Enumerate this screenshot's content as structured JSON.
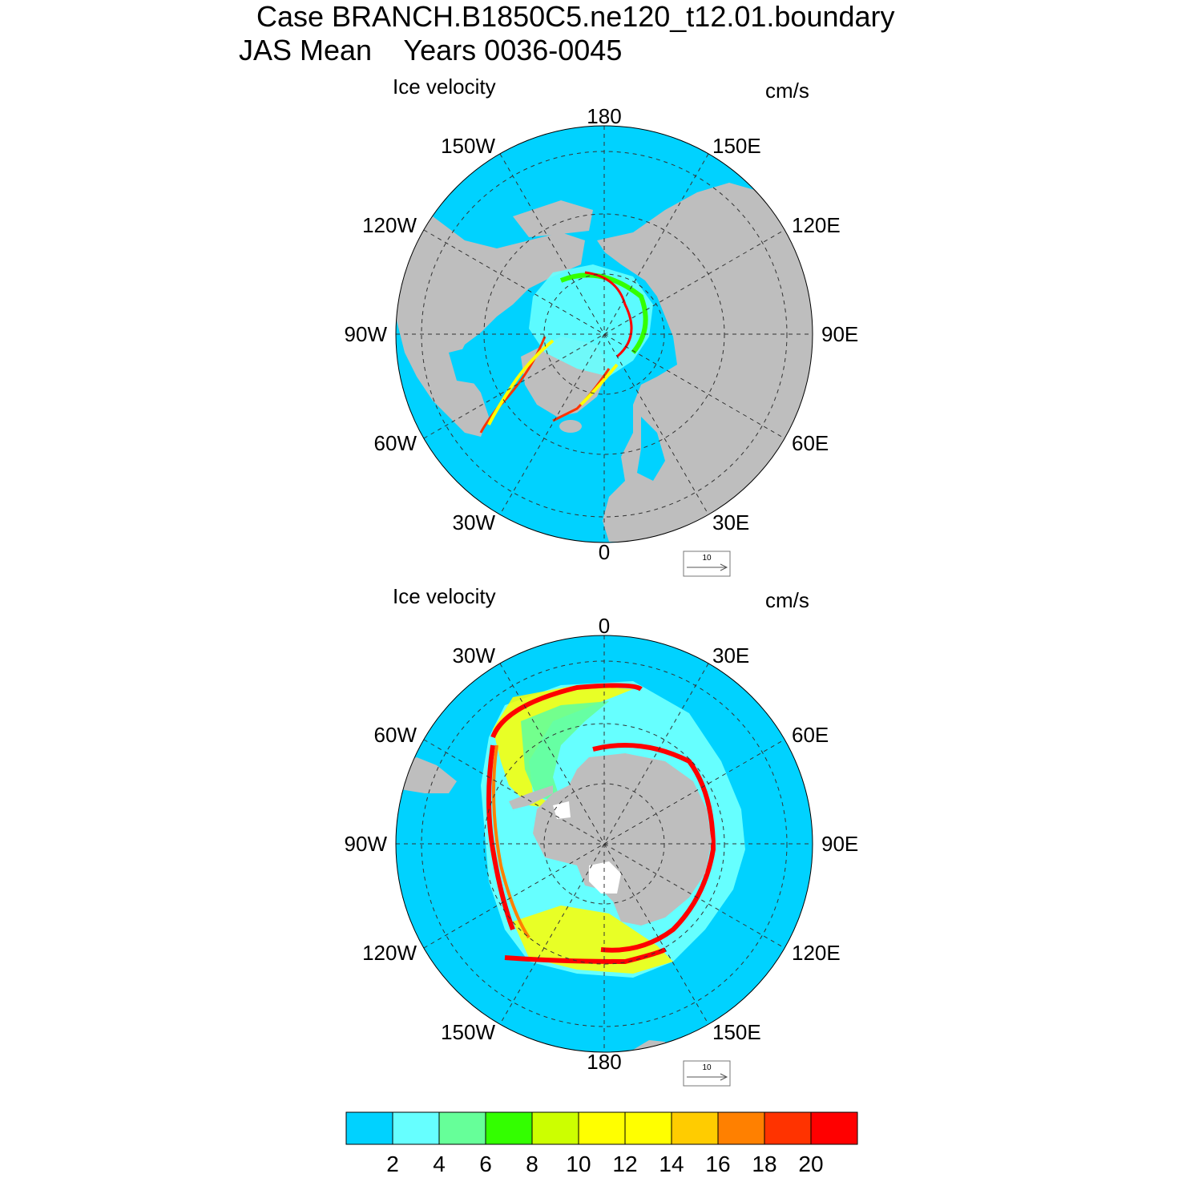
{
  "header": {
    "case_line": "Case BRANCH.B1850C5.ne120_t12.01.boundary",
    "season_line": "JAS Mean    Years 0036-0045"
  },
  "panels": [
    {
      "id": "north",
      "left_label": "Ice velocity",
      "right_label": "cm/s",
      "lon_labels": {
        "top": "180",
        "bottom": "0",
        "left": "90W",
        "right": "90E",
        "upper_left": "150W",
        "upper_right": "150E",
        "mid_upper_left": "120W",
        "mid_upper_right": "120E",
        "mid_lower_left": "60W",
        "mid_lower_right": "60E",
        "lower_left": "30W",
        "lower_right": "30E"
      },
      "ref_vector_label": "10"
    },
    {
      "id": "south",
      "left_label": "Ice velocity",
      "right_label": "cm/s",
      "lon_labels": {
        "top": "0",
        "bottom": "180",
        "left": "90W",
        "right": "90E",
        "upper_left": "30W",
        "upper_right": "30E",
        "mid_upper_left": "60W",
        "mid_upper_right": "60E",
        "mid_lower_left": "120W",
        "mid_lower_right": "120E",
        "lower_left": "150W",
        "lower_right": "150E"
      },
      "ref_vector_label": "10"
    }
  ],
  "colorbar": {
    "colors": [
      "#00d2ff",
      "#66ffff",
      "#66ff99",
      "#33ff00",
      "#ccff00",
      "#ffff00",
      "#ffff00",
      "#ffcc00",
      "#ff8000",
      "#ff3300",
      "#ff0000"
    ],
    "labels": [
      "2",
      "4",
      "6",
      "8",
      "10",
      "12",
      "14",
      "16",
      "18",
      "20"
    ]
  },
  "colors": {
    "ocean": "#00d2ff",
    "land": "#bebebe",
    "grid": "#333333"
  }
}
